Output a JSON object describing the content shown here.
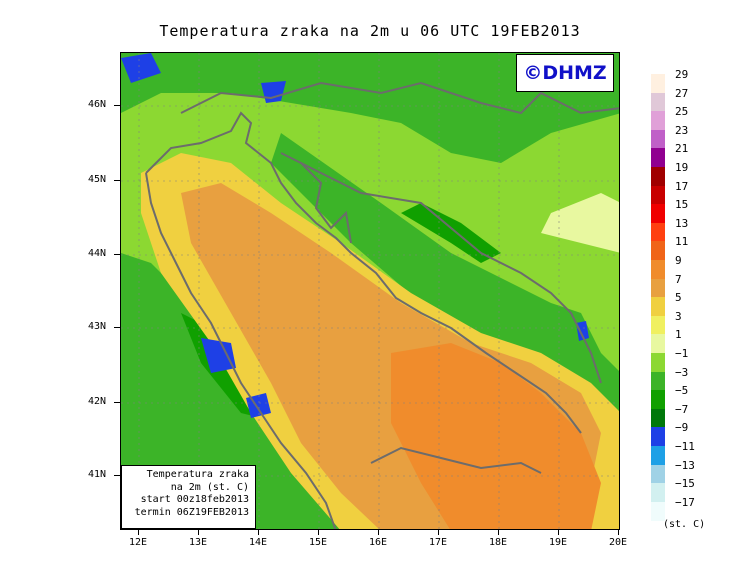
{
  "title": "Temperatura zraka na 2m u 06 UTC 19FEB2013",
  "logo": "©DHMZ",
  "info_box": {
    "line1": "Temperatura zraka",
    "line2": "na 2m (st. C)",
    "line3": "start 00z18feb2013",
    "line4": "termin 06Z19FEB2013"
  },
  "axes": {
    "lat_labels": [
      "46N",
      "45N",
      "44N",
      "43N",
      "42N",
      "41N"
    ],
    "lon_labels": [
      "12E",
      "13E",
      "14E",
      "15E",
      "16E",
      "17E",
      "18E",
      "19E",
      "20E"
    ]
  },
  "legend": {
    "levels": [
      "29",
      "27",
      "25",
      "23",
      "21",
      "19",
      "17",
      "15",
      "13",
      "11",
      "9",
      "7",
      "5",
      "3",
      "1",
      "−1",
      "−3",
      "−5",
      "−7",
      "−9",
      "−11",
      "−13",
      "−15",
      "−17"
    ],
    "colors": [
      "#fff0e0",
      "#e0c8d8",
      "#e0a0d8",
      "#c060c8",
      "#900090",
      "#a00000",
      "#c80000",
      "#f00000",
      "#ff4010",
      "#f06418",
      "#f08c2c",
      "#e8a040",
      "#f0d040",
      "#f0f060",
      "#e8f8a0",
      "#8cd832",
      "#3cb428",
      "#10a000",
      "#00780a",
      "#1e40e6",
      "#1ea0e6",
      "#a0d2e6",
      "#d2f0f0",
      "#f0fcfc"
    ],
    "units": "(st. C)"
  },
  "colors": {
    "sea_warm": "#e8a040",
    "sea_hot": "#f08c2c",
    "land_mild": "#8cd832",
    "land_cold": "#10a000",
    "coast_warm": "#f0d040",
    "mountain_cold": "#1e40e6",
    "coastline": "#6c6c6c"
  }
}
